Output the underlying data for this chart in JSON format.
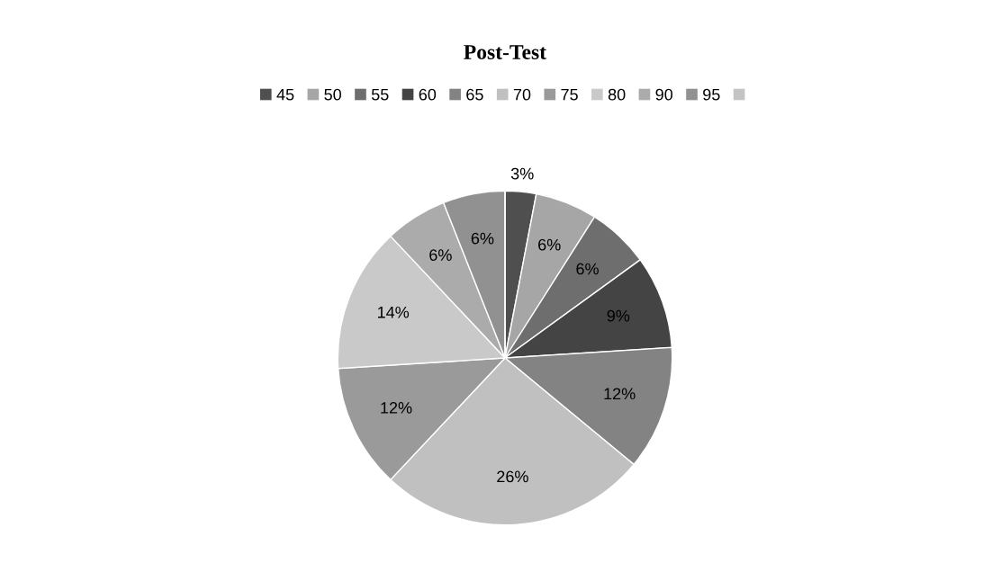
{
  "chart_data": {
    "type": "pie",
    "title": "Post-Test",
    "categories": [
      "45",
      "50",
      "55",
      "60",
      "65",
      "70",
      "75",
      "80",
      "90",
      "95",
      null
    ],
    "values": [
      3,
      6,
      6,
      9,
      12,
      26,
      12,
      14,
      6,
      6,
      0
    ],
    "colors": [
      "#4f4f4f",
      "#a6a6a6",
      "#6e6e6e",
      "#444444",
      "#838383",
      "#c0c0c0",
      "#9a9a9a",
      "#c9c9c9",
      "#ababab",
      "#919191",
      "#c4c4c4"
    ],
    "value_labels": [
      "3%",
      "6%",
      "6%",
      "9%",
      "12%",
      "26%",
      "12%",
      "14%",
      "6%",
      "6%",
      null
    ],
    "legend": "top"
  }
}
